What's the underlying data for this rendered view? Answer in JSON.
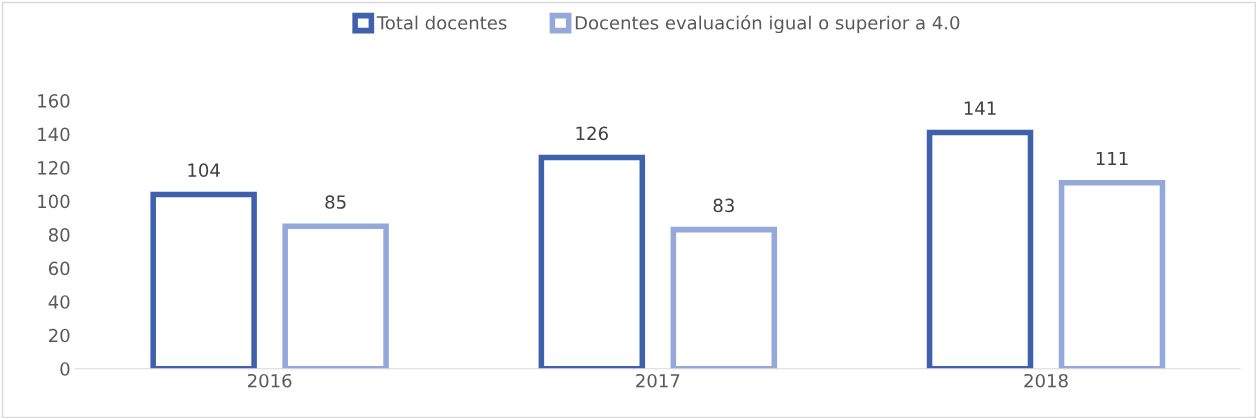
{
  "chart_data": {
    "type": "bar",
    "categories": [
      "2016",
      "2017",
      "2018"
    ],
    "series": [
      {
        "name": "Total docentes",
        "color": "#3f61ab",
        "values": [
          104,
          126,
          141
        ]
      },
      {
        "name": "Docentes evaluación igual o superior a 4.0",
        "color": "#94a9d9",
        "values": [
          85,
          83,
          111
        ]
      }
    ],
    "ylim": [
      0,
      160
    ],
    "yticks": [
      0,
      20,
      40,
      60,
      80,
      100,
      120,
      140,
      160
    ],
    "data_labels": true,
    "legend": "top",
    "grid": false
  }
}
